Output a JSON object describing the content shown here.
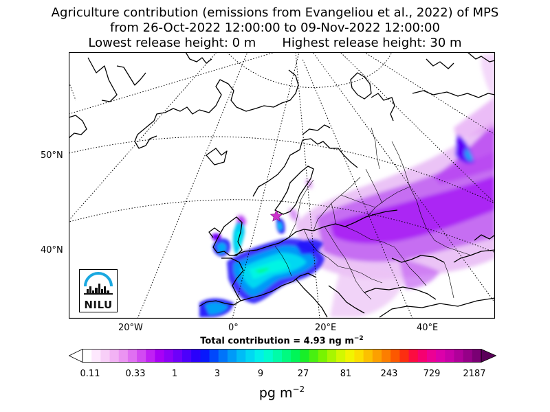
{
  "title": {
    "line1": "Agriculture contribution (emissions from Evangeliou et al., 2022) of MPS",
    "line2": "from 26-Oct-2022 12:00:00 to 09-Nov-2022 12:00:00",
    "line3_left": "Lowest release height: 0 m",
    "line3_right": "Highest release height: 30 m"
  },
  "map": {
    "lat_labels": [
      "50°N",
      "40°N"
    ],
    "lon_labels": [
      "20°W",
      "0°",
      "20°E",
      "40°E"
    ],
    "logo_text": "NILU",
    "marker": "star",
    "marker_color": "#cc33cc"
  },
  "total": {
    "prefix": "Total contribution = 4.93 ng m",
    "exponent": "−2"
  },
  "colorbar": {
    "ticks": [
      "0.11",
      "0.33",
      "1",
      "3",
      "9",
      "27",
      "81",
      "243",
      "729",
      "2187"
    ],
    "unit_prefix": "pg m",
    "unit_exponent": "−2",
    "colors": [
      "#ffffff",
      "#fde8fd",
      "#f8cff8",
      "#f2b2f4",
      "#eb94f2",
      "#e070f2",
      "#d24af2",
      "#c020f4",
      "#a800f6",
      "#8c00f8",
      "#6e00fa",
      "#4c00fb",
      "#2a00fb",
      "#0818fc",
      "#0048fc",
      "#0074fa",
      "#009af8",
      "#00bcf6",
      "#00d8f2",
      "#00f0ea",
      "#00fcce",
      "#00fca8",
      "#00fa80",
      "#00f658",
      "#18ee28",
      "#48f010",
      "#78f400",
      "#a8f600",
      "#d2f800",
      "#f2f400",
      "#fcde00",
      "#fcc000",
      "#fca000",
      "#fc7e00",
      "#fc5800",
      "#fc2e10",
      "#fc0c40",
      "#f60070",
      "#ec0094",
      "#dc00aa",
      "#c800a8",
      "#b0009a",
      "#960088",
      "#7a0074"
    ]
  }
}
